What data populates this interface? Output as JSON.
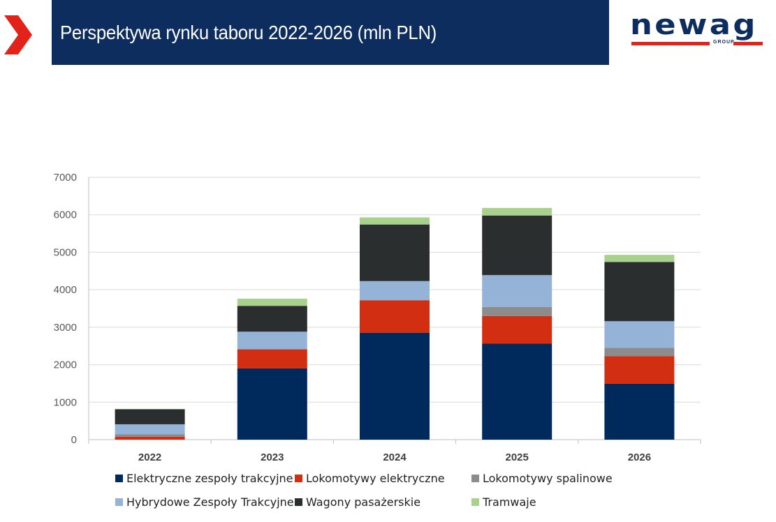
{
  "header": {
    "title": "Perspektywa rynku taboru 2022-2026 (mln PLN)",
    "accent_color": "#0d2d5e",
    "chevron_color": "#e2231a"
  },
  "logo": {
    "word": "newag",
    "sub": "GROUP"
  },
  "chart_data": {
    "type": "bar",
    "stacked": true,
    "title": "",
    "xlabel": "",
    "ylabel": "",
    "ylim": [
      0,
      7000
    ],
    "yticks": [
      0,
      1000,
      2000,
      3000,
      4000,
      5000,
      6000,
      7000
    ],
    "grid": true,
    "legend_position": "bottom",
    "categories": [
      "2022",
      "2023",
      "2024",
      "2025",
      "2026"
    ],
    "series": [
      {
        "name": "Elektryczne zespoły trakcyjne",
        "color": "#002a5c",
        "values": [
          0,
          1900,
          2850,
          2560,
          1490
        ]
      },
      {
        "name": "Lokomotywy elektryczne",
        "color": "#d22f12",
        "values": [
          80,
          510,
          870,
          740,
          740
        ]
      },
      {
        "name": "Lokomotywy spalinowe",
        "color": "#8c8c8c",
        "values": [
          60,
          0,
          0,
          240,
          220
        ]
      },
      {
        "name": "Hybrydowe Zespoły Trakcyjne",
        "color": "#95b3d7",
        "values": [
          270,
          470,
          510,
          850,
          710
        ]
      },
      {
        "name": "Wagony pasażerskie",
        "color": "#2b2e2f",
        "values": [
          400,
          690,
          1510,
          1590,
          1580
        ]
      },
      {
        "name": "Tramwaje",
        "color": "#a9d18e",
        "values": [
          10,
          190,
          190,
          200,
          190
        ]
      }
    ]
  }
}
